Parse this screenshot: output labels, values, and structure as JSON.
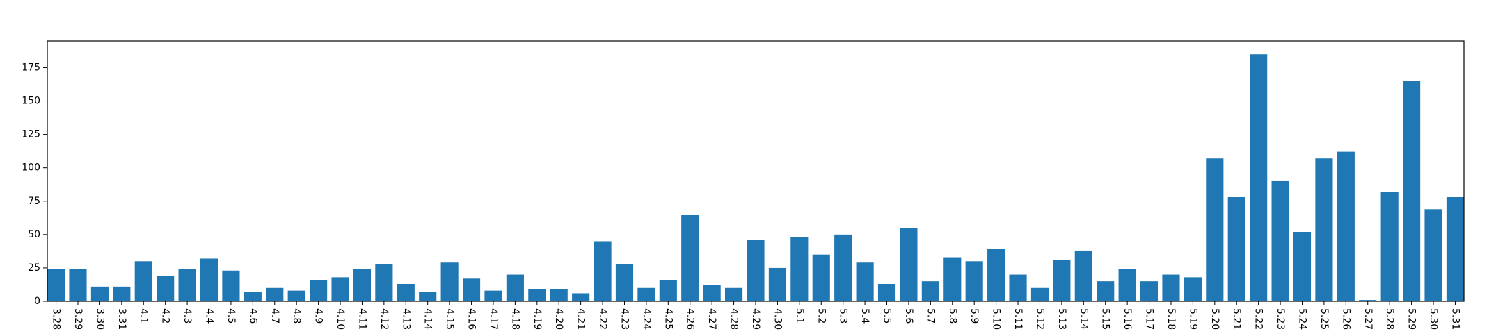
{
  "chart_data": {
    "type": "bar",
    "title": "",
    "xlabel": "",
    "ylabel": "",
    "ylim": [
      0,
      195
    ],
    "yticks": [
      0,
      25,
      50,
      75,
      100,
      125,
      150,
      175
    ],
    "grid": false,
    "bar_color": "#1f77b4",
    "categories": [
      "3.28",
      "3.29",
      "3.30",
      "3.31",
      "4.1",
      "4.2",
      "4.3",
      "4.4",
      "4.5",
      "4.6",
      "4.7",
      "4.8",
      "4.9",
      "4.10",
      "4.11",
      "4.12",
      "4.13",
      "4.14",
      "4.15",
      "4.16",
      "4.17",
      "4.18",
      "4.19",
      "4.20",
      "4.21",
      "4.22",
      "4.23",
      "4.24",
      "4.25",
      "4.26",
      "4.27",
      "4.28",
      "4.29",
      "4.30",
      "5.1",
      "5.2",
      "5.3",
      "5.4",
      "5.5",
      "5.6",
      "5.7",
      "5.8",
      "5.9",
      "5.10",
      "5.11",
      "5.12",
      "5.13",
      "5.14",
      "5.15",
      "5.16",
      "5.17",
      "5.18",
      "5.19",
      "5.20",
      "5.21",
      "5.22",
      "5.23",
      "5.24",
      "5.25",
      "5.26",
      "5.27",
      "5.28",
      "5.29",
      "5.30",
      "5.31"
    ],
    "values": [
      24,
      24,
      11,
      11,
      30,
      19,
      24,
      32,
      23,
      7,
      10,
      8,
      16,
      18,
      24,
      28,
      13,
      7,
      29,
      17,
      8,
      20,
      9,
      9,
      6,
      45,
      28,
      10,
      16,
      65,
      12,
      10,
      46,
      25,
      48,
      35,
      50,
      29,
      13,
      55,
      15,
      33,
      30,
      39,
      20,
      10,
      31,
      38,
      15,
      24,
      15,
      20,
      18,
      107,
      78,
      185,
      90,
      52,
      107,
      112,
      1,
      82,
      165,
      69,
      78
    ]
  }
}
